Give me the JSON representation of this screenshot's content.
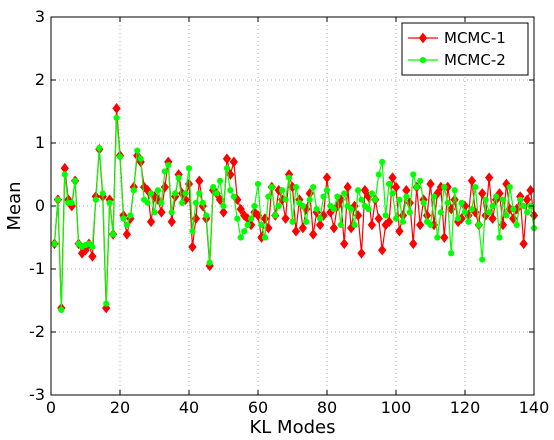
{
  "chart_data": {
    "type": "line",
    "xlabel": "KL Modes",
    "ylabel": "Mean",
    "xlim": [
      0,
      140
    ],
    "ylim": [
      -3,
      3
    ],
    "xticks": [
      0,
      20,
      40,
      60,
      80,
      100,
      120,
      140
    ],
    "yticks": [
      -3,
      -2,
      -1,
      0,
      1,
      2,
      3
    ],
    "grid": true,
    "legend_position": "top-right",
    "series": [
      {
        "name": "MCMC-1",
        "color": "#ff0000",
        "marker": "diamond",
        "x": [
          1,
          2,
          3,
          4,
          5,
          6,
          7,
          8,
          9,
          10,
          11,
          12,
          13,
          14,
          15,
          16,
          17,
          18,
          19,
          20,
          21,
          22,
          23,
          24,
          25,
          26,
          27,
          28,
          29,
          30,
          31,
          32,
          33,
          34,
          35,
          36,
          37,
          38,
          39,
          40,
          41,
          42,
          43,
          44,
          45,
          46,
          47,
          48,
          49,
          50,
          51,
          52,
          53,
          54,
          55,
          56,
          57,
          58,
          59,
          60,
          61,
          62,
          63,
          64,
          65,
          66,
          67,
          68,
          69,
          70,
          71,
          72,
          73,
          74,
          75,
          76,
          77,
          78,
          79,
          80,
          81,
          82,
          83,
          84,
          85,
          86,
          87,
          88,
          89,
          90,
          91,
          92,
          93,
          94,
          95,
          96,
          97,
          98,
          99,
          100,
          101,
          102,
          103,
          104,
          105,
          106,
          107,
          108,
          109,
          110,
          111,
          112,
          113,
          114,
          115,
          116,
          117,
          118,
          119,
          120,
          121,
          122,
          123,
          124,
          125,
          126,
          127,
          128,
          129,
          130,
          131,
          132,
          133,
          134,
          135,
          136,
          137,
          138,
          139,
          140
        ],
        "y": [
          -0.6,
          0.1,
          -1.62,
          0.6,
          0.1,
          0.0,
          0.4,
          -0.6,
          -0.75,
          -0.7,
          -0.6,
          -0.8,
          0.15,
          0.9,
          0.15,
          -1.62,
          0.1,
          -0.45,
          1.55,
          0.8,
          -0.15,
          -0.45,
          -0.2,
          0.3,
          0.8,
          0.7,
          0.3,
          0.25,
          -0.25,
          0.15,
          0.1,
          -0.1,
          0.3,
          0.7,
          -0.25,
          0.15,
          0.5,
          0.2,
          0.1,
          0.35,
          -0.65,
          -0.2,
          0.4,
          0.0,
          -0.2,
          -0.95,
          0.25,
          0.2,
          0.1,
          -0.1,
          0.75,
          0.5,
          0.7,
          0.1,
          -0.05,
          -0.15,
          -0.2,
          -0.3,
          -0.1,
          -0.15,
          -0.5,
          -0.2,
          -0.35,
          0.3,
          -0.15,
          0.25,
          0.1,
          -0.2,
          0.5,
          0.3,
          -0.4,
          0.1,
          -0.35,
          -0.05,
          0.2,
          -0.45,
          -0.1,
          -0.3,
          -0.15,
          0.45,
          -0.1,
          -0.35,
          0.0,
          0.1,
          -0.6,
          0.3,
          -0.35,
          0.0,
          -0.15,
          -0.75,
          0.25,
          0.15,
          -0.3,
          0.1,
          -0.2,
          -0.7,
          -0.3,
          -0.25,
          0.45,
          0.3,
          -0.4,
          -0.15,
          0.25,
          0.05,
          -0.6,
          0.3,
          -0.3,
          0.1,
          -0.15,
          0.35,
          -0.3,
          0.2,
          0.3,
          -0.5,
          0.3,
          -0.05,
          0.1,
          -0.25,
          -0.2,
          0.0,
          -0.15,
          0.4,
          -0.1,
          -0.3,
          0.2,
          -0.15,
          0.45,
          -0.2,
          0.1,
          0.2,
          -0.3,
          0.35,
          -0.05,
          -0.2,
          -0.05,
          0.15,
          -0.6,
          0.1,
          0.25,
          -0.15
        ]
      },
      {
        "name": "MCMC-2",
        "color": "#00ff00",
        "marker": "dot",
        "x": [
          1,
          2,
          3,
          4,
          5,
          6,
          7,
          8,
          9,
          10,
          11,
          12,
          13,
          14,
          15,
          16,
          17,
          18,
          19,
          20,
          21,
          22,
          23,
          24,
          25,
          26,
          27,
          28,
          29,
          30,
          31,
          32,
          33,
          34,
          35,
          36,
          37,
          38,
          39,
          40,
          41,
          42,
          43,
          44,
          45,
          46,
          47,
          48,
          49,
          50,
          51,
          52,
          53,
          54,
          55,
          56,
          57,
          58,
          59,
          60,
          61,
          62,
          63,
          64,
          65,
          66,
          67,
          68,
          69,
          70,
          71,
          72,
          73,
          74,
          75,
          76,
          77,
          78,
          79,
          80,
          81,
          82,
          83,
          84,
          85,
          86,
          87,
          88,
          89,
          90,
          91,
          92,
          93,
          94,
          95,
          96,
          97,
          98,
          99,
          100,
          101,
          102,
          103,
          104,
          105,
          106,
          107,
          108,
          109,
          110,
          111,
          112,
          113,
          114,
          115,
          116,
          117,
          118,
          119,
          120,
          121,
          122,
          123,
          124,
          125,
          126,
          127,
          128,
          129,
          130,
          131,
          132,
          133,
          134,
          135,
          136,
          137,
          138,
          139,
          140
        ],
        "y": [
          -0.6,
          0.1,
          -1.65,
          0.5,
          0.05,
          0.05,
          0.4,
          -0.6,
          -0.65,
          -0.62,
          -0.6,
          -0.65,
          0.1,
          0.92,
          0.2,
          -1.55,
          0.05,
          -0.45,
          1.4,
          0.78,
          -0.2,
          -0.3,
          -0.15,
          0.25,
          0.88,
          0.75,
          0.1,
          0.05,
          0.2,
          -0.1,
          0.25,
          0.05,
          0.55,
          0.65,
          -0.1,
          0.2,
          0.45,
          0.05,
          0.2,
          0.6,
          -0.4,
          0.05,
          0.2,
          0.05,
          -0.15,
          -0.9,
          0.3,
          0.2,
          0.4,
          0.0,
          0.6,
          0.25,
          0.15,
          -0.2,
          -0.5,
          -0.4,
          -0.3,
          -0.2,
          0.0,
          0.35,
          -0.3,
          -0.5,
          0.15,
          0.3,
          -0.15,
          0.0,
          0.25,
          0.1,
          0.45,
          -0.25,
          0.3,
          0.05,
          0.0,
          -0.25,
          0.1,
          0.3,
          -0.05,
          -0.2,
          0.15,
          0.25,
          0.0,
          -0.05,
          0.15,
          -0.3,
          0.2,
          0.0,
          -0.05,
          -0.3,
          0.25,
          0.1,
          0.0,
          -0.05,
          0.2,
          0.1,
          0.5,
          0.7,
          -0.15,
          0.35,
          0.2,
          -0.2,
          0.1,
          -0.25,
          0.15,
          -0.1,
          0.5,
          0.3,
          0.4,
          0.05,
          -0.25,
          -0.3,
          0.15,
          -0.5,
          -0.1,
          0.3,
          0.05,
          -0.75,
          0.25,
          -0.2,
          0.05,
          -0.1,
          -0.25,
          -0.05,
          0.3,
          -0.3,
          -0.85,
          0.1,
          -0.1,
          0.0,
          0.15,
          -0.5,
          0.1,
          -0.15,
          0.3,
          -0.05,
          -0.3,
          0.1,
          0.0,
          -0.1,
          0.0,
          -0.35
        ]
      }
    ]
  }
}
